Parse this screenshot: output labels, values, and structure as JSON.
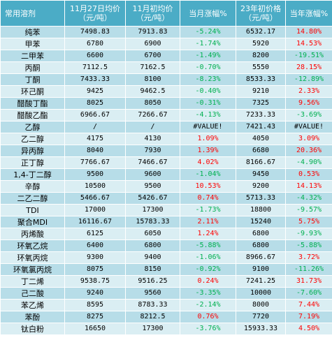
{
  "colors": {
    "header_bg": "#4bacc6",
    "band_dark": "#b7dde8",
    "band_light": "#daeef3",
    "increase": "#ff0000",
    "decrease": "#00b050"
  },
  "header": {
    "name": "常用溶剂",
    "price_nov27": "11月27日均价（元/吨）",
    "price_nov_start": "11月初均价（元/吨）",
    "month_change": "当月涨幅%",
    "price_year_start": "23年初价格（元/吨）",
    "year_change": "当年涨幅%"
  },
  "rows": [
    {
      "name": "纯苯",
      "p1": "7498.83",
      "p2": "7913.83",
      "m": "-5.24%",
      "m_dir": "neg",
      "p3": "6532.17",
      "y": "14.80%",
      "y_dir": "pos"
    },
    {
      "name": "甲苯",
      "p1": "6780",
      "p2": "6900",
      "m": "-1.74%",
      "m_dir": "neg",
      "p3": "5920",
      "y": "14.53%",
      "y_dir": "pos"
    },
    {
      "name": "二甲苯",
      "p1": "6600",
      "p2": "6700",
      "m": "-1.49%",
      "m_dir": "neg",
      "p3": "8200",
      "y": "-19.51%",
      "y_dir": "neg"
    },
    {
      "name": "丙酮",
      "p1": "7112.5",
      "p2": "7162.5",
      "m": "-0.70%",
      "m_dir": "neg",
      "p3": "5550",
      "y": "28.15%",
      "y_dir": "pos"
    },
    {
      "name": "丁酮",
      "p1": "7433.33",
      "p2": "8100",
      "m": "-8.23%",
      "m_dir": "neg",
      "p3": "8533.33",
      "y": "-12.89%",
      "y_dir": "neg"
    },
    {
      "name": "环己酮",
      "p1": "9425",
      "p2": "9462.5",
      "m": "-0.40%",
      "m_dir": "neg",
      "p3": "9210",
      "y": "2.33%",
      "y_dir": "pos"
    },
    {
      "name": "醋酸丁酯",
      "p1": "8025",
      "p2": "8050",
      "m": "-0.31%",
      "m_dir": "neg",
      "p3": "7325",
      "y": "9.56%",
      "y_dir": "pos"
    },
    {
      "name": "醋酸乙酯",
      "p1": "6966.67",
      "p2": "7266.67",
      "m": "-4.13%",
      "m_dir": "neg",
      "p3": "7233.33",
      "y": "-3.69%",
      "y_dir": "neg"
    },
    {
      "name": "乙醇",
      "p1": "/",
      "p2": "/",
      "m": "#VALUE!",
      "m_dir": "neutral",
      "p3": "7421.43",
      "y": "#VALUE!",
      "y_dir": "neutral"
    },
    {
      "name": "乙二醇",
      "p1": "4175",
      "p2": "4130",
      "m": "1.09%",
      "m_dir": "pos",
      "p3": "4050",
      "y": "3.09%",
      "y_dir": "pos"
    },
    {
      "name": "异丙醇",
      "p1": "8040",
      "p2": "7930",
      "m": "1.39%",
      "m_dir": "pos",
      "p3": "6680",
      "y": "20.36%",
      "y_dir": "pos"
    },
    {
      "name": "正丁醇",
      "p1": "7766.67",
      "p2": "7466.67",
      "m": "4.02%",
      "m_dir": "pos",
      "p3": "8166.67",
      "y": "-4.90%",
      "y_dir": "neg"
    },
    {
      "name": "1,4-丁二醇",
      "p1": "9500",
      "p2": "9600",
      "m": "-1.04%",
      "m_dir": "neg",
      "p3": "9450",
      "y": "0.53%",
      "y_dir": "pos"
    },
    {
      "name": "辛醇",
      "p1": "10500",
      "p2": "9500",
      "m": "10.53%",
      "m_dir": "pos",
      "p3": "9200",
      "y": "14.13%",
      "y_dir": "pos"
    },
    {
      "name": "二乙二醇",
      "p1": "5466.67",
      "p2": "5426.67",
      "m": "0.74%",
      "m_dir": "pos",
      "p3": "5713.33",
      "y": "-4.32%",
      "y_dir": "neg"
    },
    {
      "name": "TDI",
      "p1": "17000",
      "p2": "17300",
      "m": "-1.73%",
      "m_dir": "neg",
      "p3": "18800",
      "y": "-9.57%",
      "y_dir": "neg"
    },
    {
      "name": "聚合MDI",
      "p1": "16116.67",
      "p2": "15783.33",
      "m": "2.11%",
      "m_dir": "pos",
      "p3": "15240",
      "y": "5.75%",
      "y_dir": "pos"
    },
    {
      "name": "丙烯酸",
      "p1": "6125",
      "p2": "6050",
      "m": "1.24%",
      "m_dir": "pos",
      "p3": "6800",
      "y": "-9.93%",
      "y_dir": "neg"
    },
    {
      "name": "环氧乙烷",
      "p1": "6400",
      "p2": "6800",
      "m": "-5.88%",
      "m_dir": "neg",
      "p3": "6800",
      "y": "-5.88%",
      "y_dir": "neg"
    },
    {
      "name": "环氧丙烷",
      "p1": "9300",
      "p2": "9400",
      "m": "-1.06%",
      "m_dir": "neg",
      "p3": "8966.67",
      "y": "3.72%",
      "y_dir": "pos"
    },
    {
      "name": "环氧氯丙烷",
      "p1": "8075",
      "p2": "8150",
      "m": "-0.92%",
      "m_dir": "neg",
      "p3": "9100",
      "y": "-11.26%",
      "y_dir": "neg"
    },
    {
      "name": "丁二烯",
      "p1": "9538.75",
      "p2": "9516.25",
      "m": "0.24%",
      "m_dir": "pos",
      "p3": "7241.25",
      "y": "31.73%",
      "y_dir": "pos"
    },
    {
      "name": "己二酸",
      "p1": "9240",
      "p2": "9560",
      "m": "-3.35%",
      "m_dir": "neg",
      "p3": "10000",
      "y": "-7.60%",
      "y_dir": "neg"
    },
    {
      "name": "苯乙烯",
      "p1": "8595",
      "p2": "8783.33",
      "m": "-2.14%",
      "m_dir": "neg",
      "p3": "8000",
      "y": "7.44%",
      "y_dir": "pos"
    },
    {
      "name": "苯酚",
      "p1": "8275",
      "p2": "8212.5",
      "m": "0.76%",
      "m_dir": "pos",
      "p3": "7720",
      "y": "7.19%",
      "y_dir": "pos"
    },
    {
      "name": "钛白粉",
      "p1": "16650",
      "p2": "17300",
      "m": "-3.76%",
      "m_dir": "neg",
      "p3": "15933.33",
      "y": "4.50%",
      "y_dir": "pos"
    }
  ]
}
